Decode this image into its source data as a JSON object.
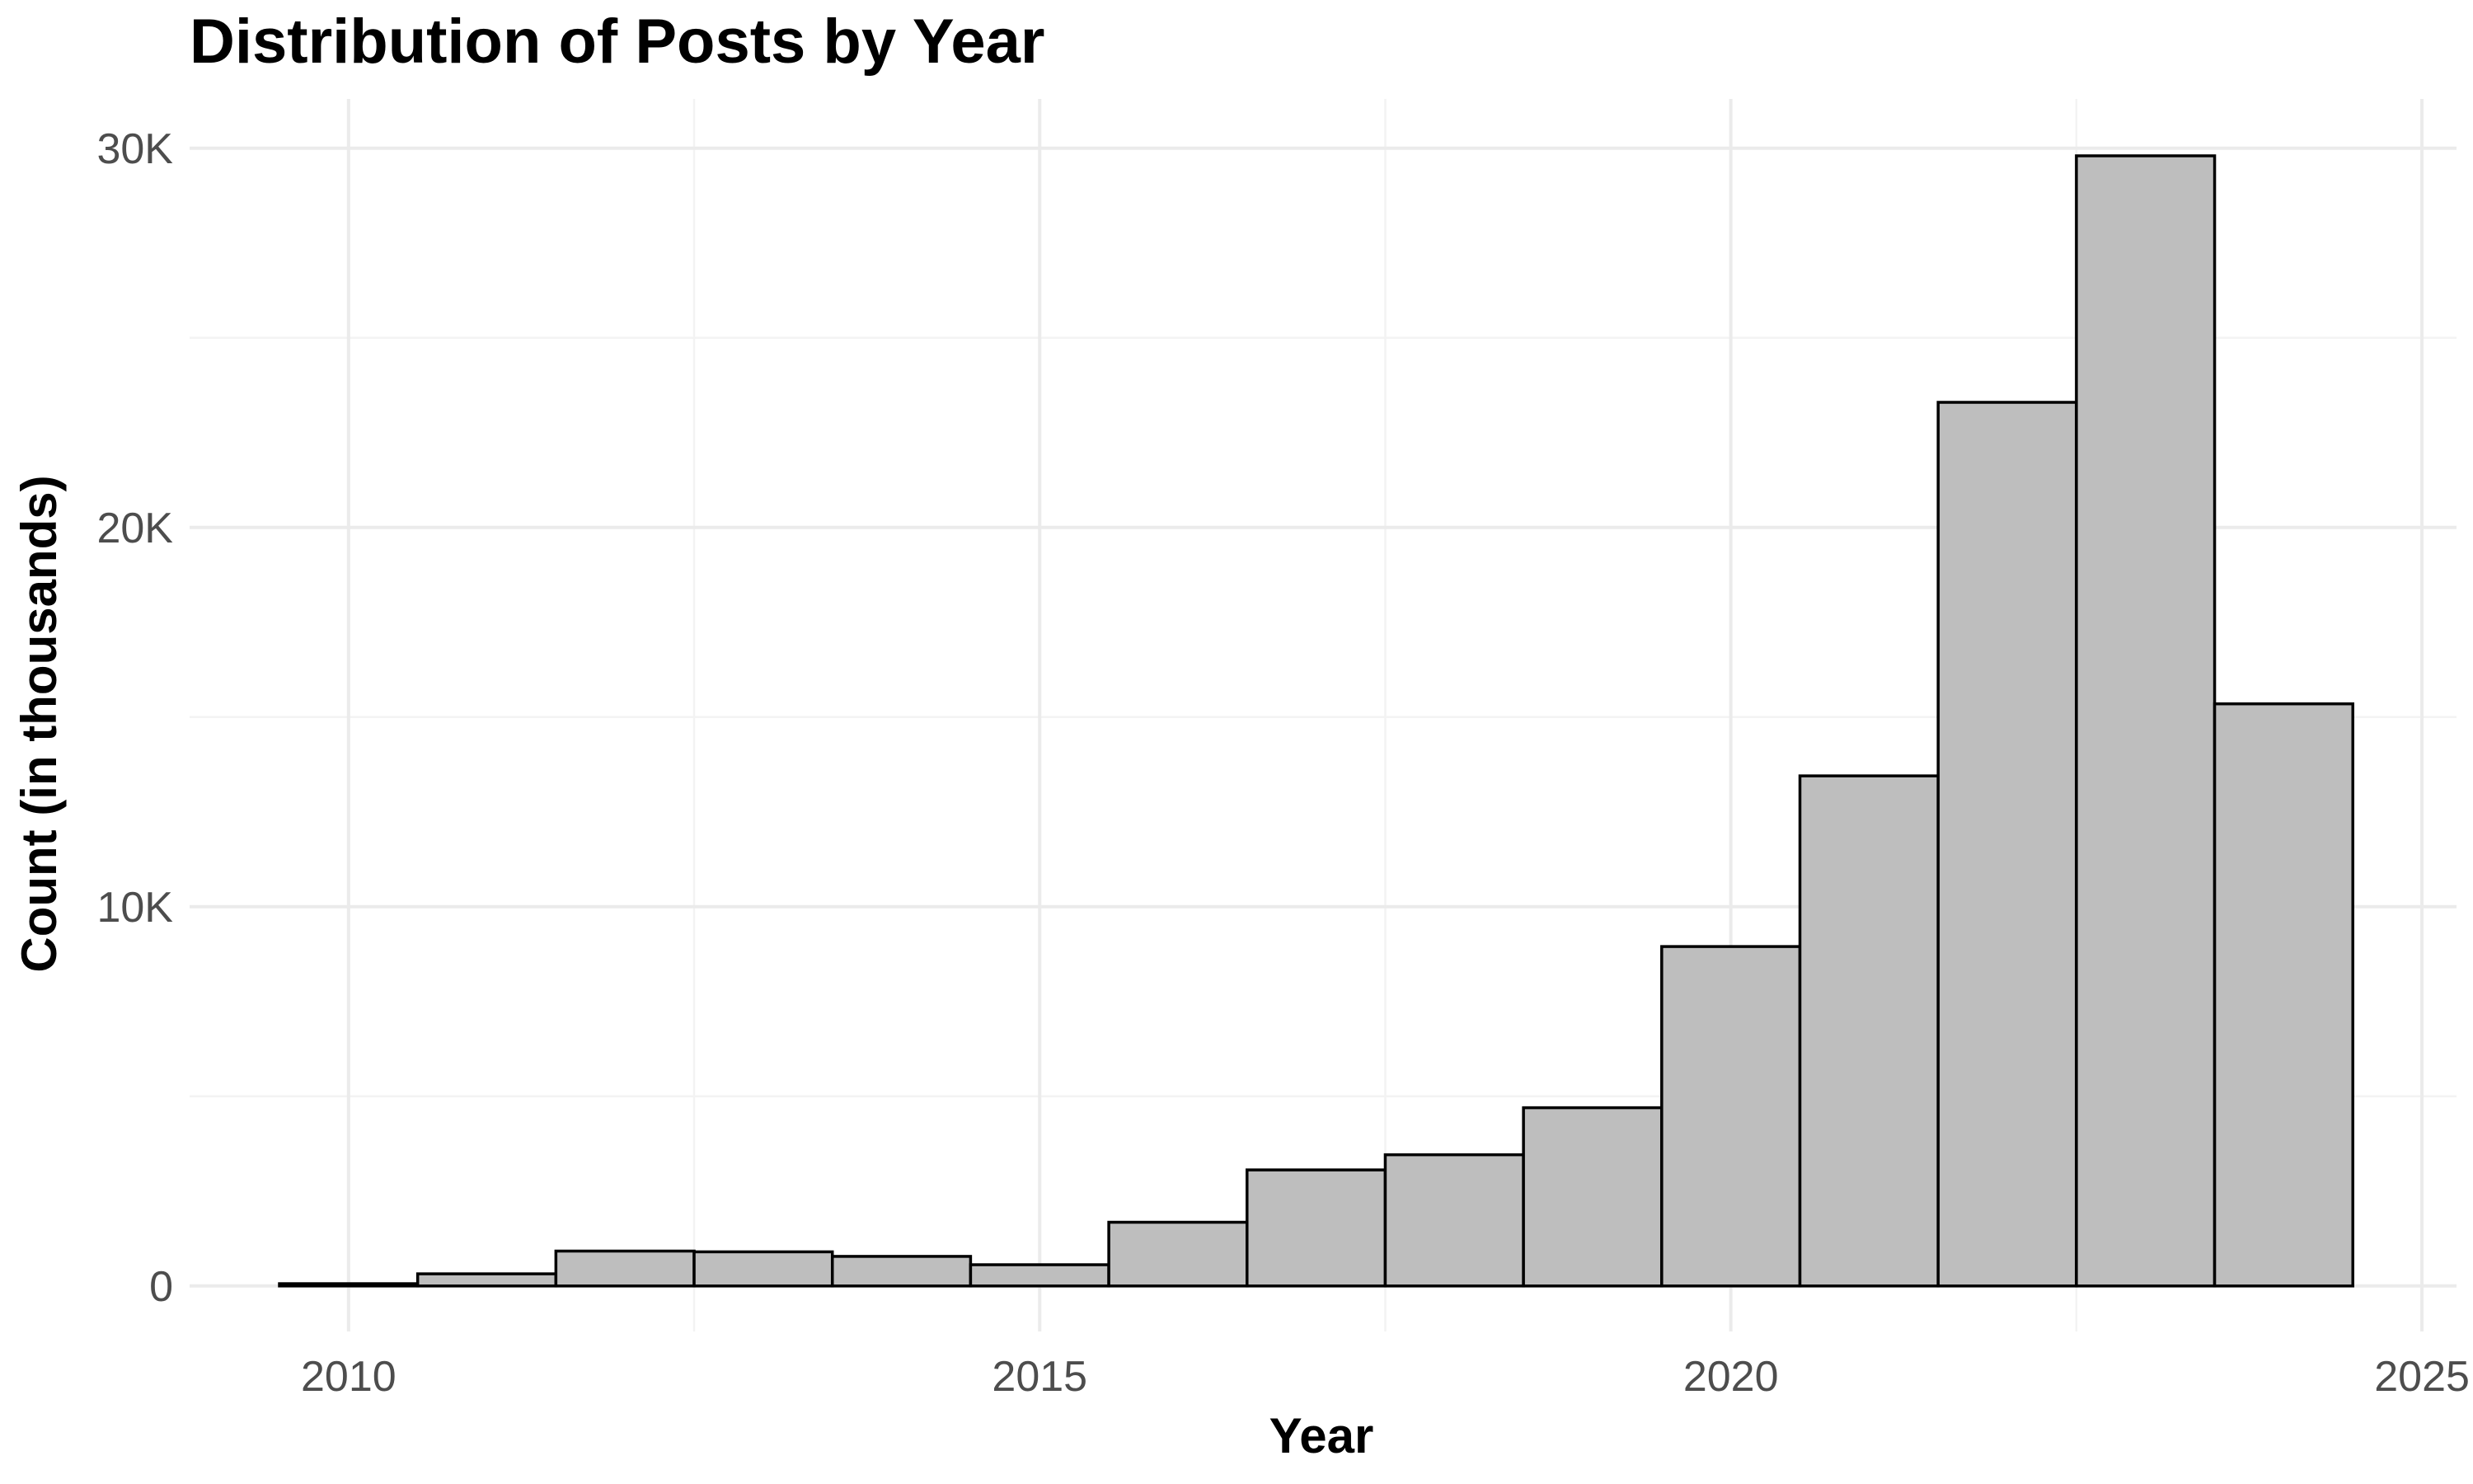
{
  "chart_data": {
    "type": "bar",
    "title": "Distribution of Posts by Year",
    "xlabel": "Year",
    "ylabel": "Count (in thousands)",
    "x_ticks": [
      2010,
      2015,
      2020,
      2025
    ],
    "y_ticks": [
      {
        "value": 0,
        "label": "0"
      },
      {
        "value": 10000,
        "label": "10K"
      },
      {
        "value": 20000,
        "label": "20K"
      },
      {
        "value": 30000,
        "label": "30K"
      }
    ],
    "xlim": [
      2008.85,
      2025.25
    ],
    "ylim": [
      -1200,
      31300
    ],
    "bar_color": "#bebebe",
    "bar_outline": "#000000",
    "grid": true,
    "categories": [
      2010,
      2011,
      2012,
      2013,
      2014,
      2015,
      2016,
      2017,
      2018,
      2019,
      2020,
      2021,
      2022,
      2023,
      2024
    ],
    "values": [
      60,
      320,
      920,
      900,
      780,
      560,
      1680,
      3060,
      3460,
      4700,
      8950,
      13450,
      23300,
      29800,
      15350
    ]
  }
}
